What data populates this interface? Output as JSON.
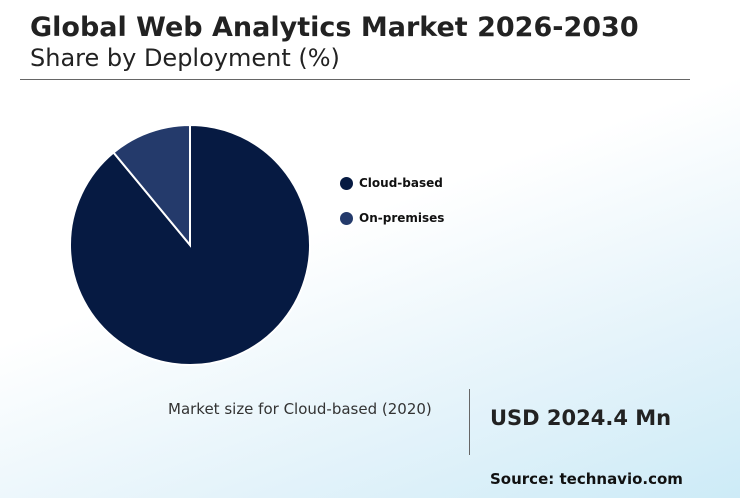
{
  "header": {
    "title": "Global Web Analytics Market 2026-2030",
    "subtitle": "Share by Deployment (%)"
  },
  "chart_data": {
    "type": "pie",
    "categories": [
      "Cloud-based",
      "On-premises"
    ],
    "values": [
      89,
      11
    ],
    "colors": [
      "#061a42",
      "#243a6b"
    ],
    "legend_position": "right"
  },
  "footer": {
    "market_label": "Market size for Cloud-based (2020)",
    "market_value": "USD 2024.4 Mn",
    "source": "Source: technavio.com"
  }
}
